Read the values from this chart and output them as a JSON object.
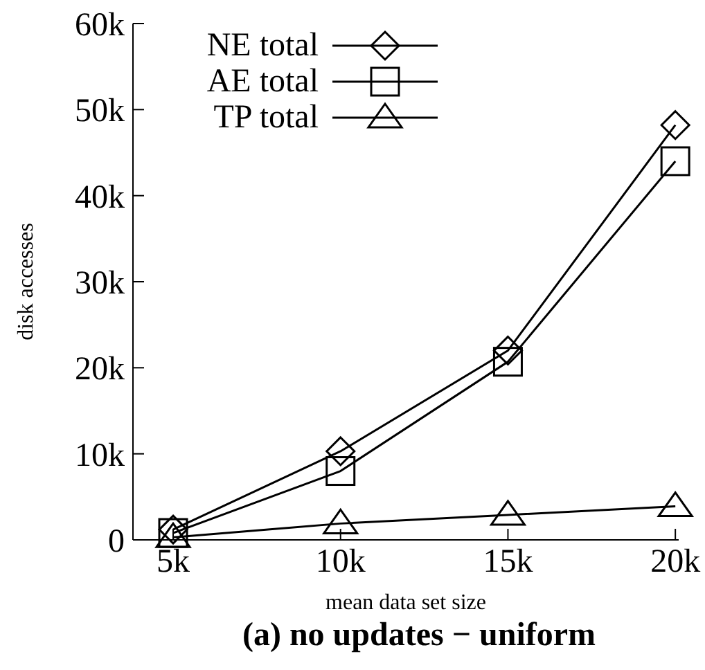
{
  "chart_data": {
    "type": "line",
    "title": "(a) no updates − uniform",
    "xlabel": "mean data set size",
    "ylabel": "disk accesses",
    "x": [
      5000,
      10000,
      15000,
      20000
    ],
    "series": [
      {
        "name": "NE total",
        "color": "#000000",
        "marker": "diamond",
        "values": [
          1200,
          10300,
          22000,
          48200
        ]
      },
      {
        "name": "AE total",
        "color": "#000000",
        "marker": "square",
        "values": [
          800,
          8000,
          20700,
          44000
        ]
      },
      {
        "name": "TP total",
        "color": "#000000",
        "marker": "triangle",
        "values": [
          300,
          1900,
          2900,
          3900
        ]
      }
    ],
    "xlim": [
      3800,
      20100
    ],
    "xticks": [
      {
        "value": 5000,
        "label": "5k"
      },
      {
        "value": 10000,
        "label": "10k"
      },
      {
        "value": 15000,
        "label": "15k"
      },
      {
        "value": 20000,
        "label": "20k"
      }
    ],
    "ylim": [
      0,
      60000
    ],
    "yticks": [
      {
        "value": 0,
        "label": "0"
      },
      {
        "value": 10000,
        "label": "10k"
      },
      {
        "value": 20000,
        "label": "20k"
      },
      {
        "value": 30000,
        "label": "30k"
      },
      {
        "value": 40000,
        "label": "40k"
      },
      {
        "value": 50000,
        "label": "50k"
      },
      {
        "value": 60000,
        "label": "60k"
      }
    ],
    "legend": "top left",
    "grid": false,
    "line_style": "solid"
  }
}
